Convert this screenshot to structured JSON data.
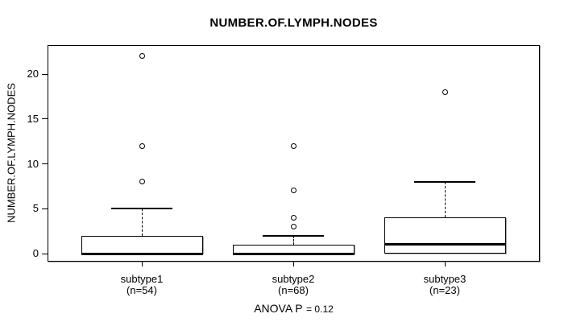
{
  "colors": {
    "line": "#000000",
    "background": "#ffffff",
    "shadow": "#aaaaaa"
  },
  "chart_data": {
    "type": "boxplot",
    "title": "NUMBER.OF.LYMPH.NODES",
    "ylabel": "NUMBER.OF.LYMPH.NODES",
    "xlabel": "",
    "footer_label": "ANOVA P",
    "footer_value": "= 0.12",
    "ylim": [
      0,
      22
    ],
    "yticks": [
      0,
      5,
      10,
      15,
      20
    ],
    "grid": false,
    "legend": null,
    "groups": [
      {
        "label": "subtype1",
        "sublabel": "(n=54)",
        "q1": 0,
        "median": 0,
        "q3": 2,
        "whisker_low": 0,
        "whisker_high": 5,
        "outliers": [
          8,
          12,
          22
        ]
      },
      {
        "label": "subtype2",
        "sublabel": "(n=68)",
        "q1": 0,
        "median": 0,
        "q3": 1,
        "whisker_low": 0,
        "whisker_high": 2,
        "outliers": [
          3,
          4,
          7,
          12
        ]
      },
      {
        "label": "subtype3",
        "sublabel": "(n=23)",
        "q1": 0,
        "median": 1,
        "q3": 4,
        "whisker_low": 0,
        "whisker_high": 8,
        "outliers": [
          18
        ]
      }
    ]
  }
}
